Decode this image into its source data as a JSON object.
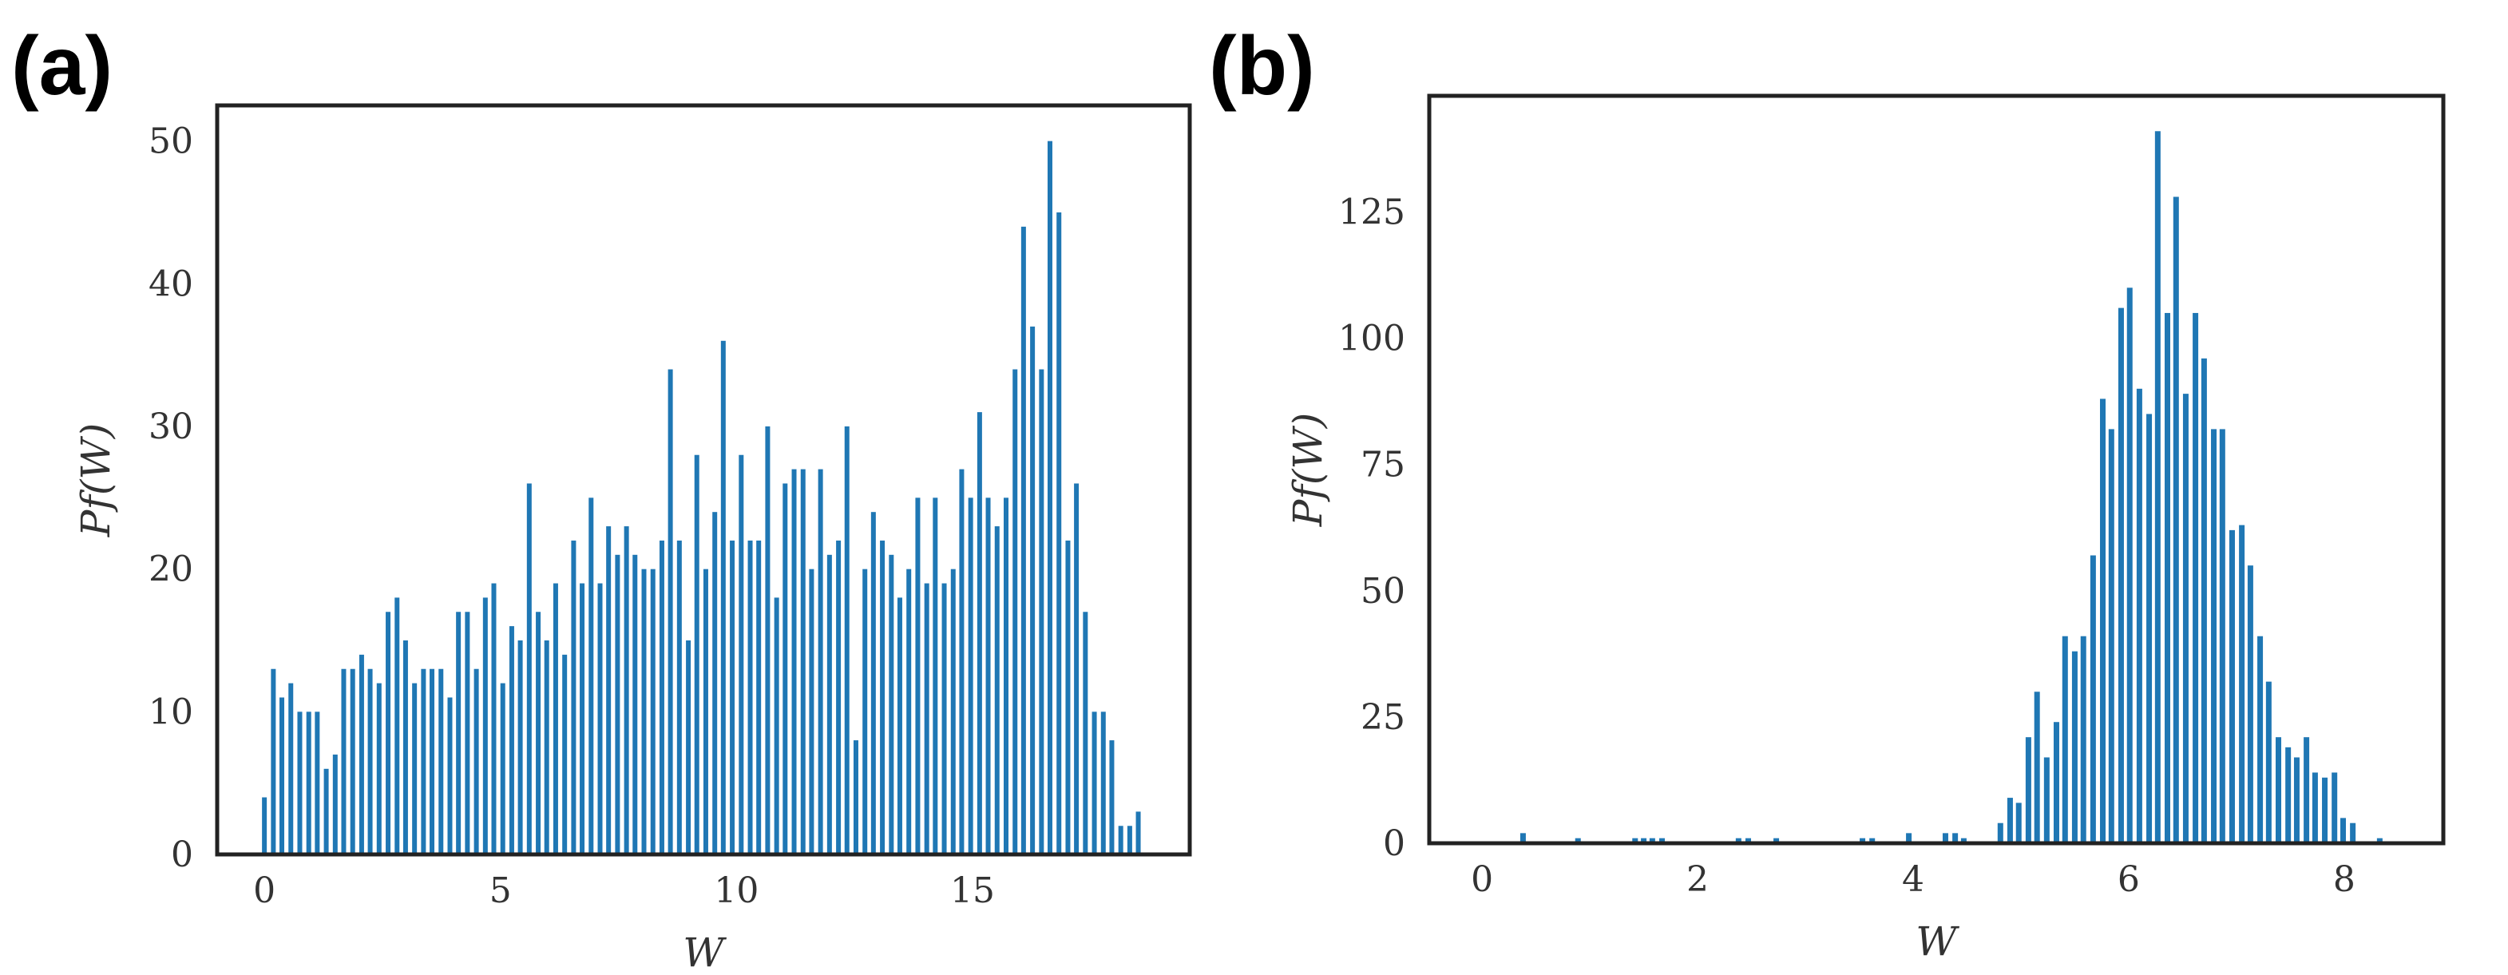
{
  "chart_data": [
    {
      "type": "bar",
      "panel_label": "(a)",
      "xlabel": "W",
      "ylabel": "Pf(W)",
      "color": "#1f77b4",
      "x": [
        0,
        0.19,
        0.37,
        0.56,
        0.75,
        0.94,
        1.12,
        1.31,
        1.5,
        1.68,
        1.87,
        2.06,
        2.24,
        2.43,
        2.62,
        2.81,
        2.99,
        3.18,
        3.37,
        3.55,
        3.74,
        3.93,
        4.11,
        4.3,
        4.49,
        4.68,
        4.86,
        5.05,
        5.24,
        5.42,
        5.61,
        5.8,
        5.98,
        6.17,
        6.36,
        6.55,
        6.73,
        6.92,
        7.11,
        7.29,
        7.48,
        7.67,
        7.85,
        8.04,
        8.23,
        8.42,
        8.6,
        8.79,
        8.98,
        9.16,
        9.35,
        9.54,
        9.72,
        9.91,
        10.1,
        10.29,
        10.47,
        10.66,
        10.85,
        11.03,
        11.22,
        11.41,
        11.59,
        11.78,
        11.97,
        12.16,
        12.34,
        12.53,
        12.72,
        12.9,
        13.09,
        13.28,
        13.46,
        13.65,
        13.84,
        14.03,
        14.21,
        14.4,
        14.59,
        14.77,
        14.96,
        15.15,
        15.33,
        15.52,
        15.71,
        15.9,
        16.08,
        16.27,
        16.46,
        16.64,
        16.83,
        17.02,
        17.2,
        17.39,
        17.58,
        17.77,
        17.95,
        18.14,
        18.33,
        18.51
      ],
      "values": [
        4,
        13,
        11,
        12,
        10,
        10,
        10,
        6,
        7,
        13,
        13,
        14,
        13,
        12,
        17,
        18,
        15,
        12,
        13,
        13,
        13,
        11,
        17,
        17,
        13,
        18,
        19,
        12,
        16,
        15,
        26,
        17,
        15,
        19,
        14,
        22,
        19,
        25,
        19,
        23,
        21,
        23,
        21,
        20,
        20,
        22,
        34,
        22,
        15,
        28,
        20,
        24,
        36,
        22,
        28,
        22,
        22,
        30,
        18,
        26,
        27,
        27,
        20,
        27,
        21,
        22,
        30,
        8,
        20,
        24,
        22,
        21,
        18,
        20,
        25,
        19,
        25,
        19,
        20,
        27,
        25,
        31,
        25,
        23,
        25,
        34,
        44,
        37,
        34,
        50,
        45,
        22,
        26,
        17,
        10,
        10,
        8,
        2,
        2,
        3
      ],
      "xlim": [
        -1,
        19.6
      ],
      "ylim": [
        0,
        52.5
      ],
      "xticks": [
        0,
        5,
        10,
        15
      ],
      "yticks": [
        0,
        10,
        20,
        30,
        40,
        50
      ]
    },
    {
      "type": "bar",
      "panel_label": "(b)",
      "xlabel": "W",
      "ylabel": "Pf(W)",
      "color": "#1f77b4",
      "x": [
        0.38,
        0.89,
        1.42,
        1.5,
        1.58,
        1.67,
        2.38,
        2.47,
        2.73,
        3.53,
        3.62,
        3.96,
        4.3,
        4.39,
        4.47,
        4.81,
        4.9,
        4.98,
        5.07,
        5.15,
        5.24,
        5.33,
        5.41,
        5.5,
        5.58,
        5.67,
        5.76,
        5.84,
        5.93,
        6.01,
        6.1,
        6.19,
        6.27,
        6.36,
        6.44,
        6.53,
        6.62,
        6.7,
        6.79,
        6.87,
        6.96,
        7.05,
        7.13,
        7.22,
        7.3,
        7.39,
        7.48,
        7.56,
        7.65,
        7.73,
        7.82,
        7.91,
        7.99,
        8.08,
        8.33
      ],
      "values": [
        2,
        1,
        1,
        1,
        1,
        1,
        1,
        1,
        1,
        1,
        1,
        2,
        2,
        2,
        1,
        4,
        9,
        8,
        21,
        30,
        17,
        24,
        41,
        38,
        41,
        57,
        88,
        82,
        106,
        110,
        90,
        85,
        141,
        105,
        128,
        89,
        105,
        96,
        82,
        82,
        62,
        63,
        55,
        41,
        32,
        21,
        19,
        17,
        21,
        14,
        13,
        14,
        5,
        4,
        1
      ],
      "xlim": [
        -0.49,
        8.92
      ],
      "ylim": [
        0,
        148
      ],
      "xticks": [
        0,
        2,
        4,
        6,
        8
      ],
      "yticks": [
        0,
        25,
        50,
        75,
        100,
        125
      ]
    }
  ]
}
